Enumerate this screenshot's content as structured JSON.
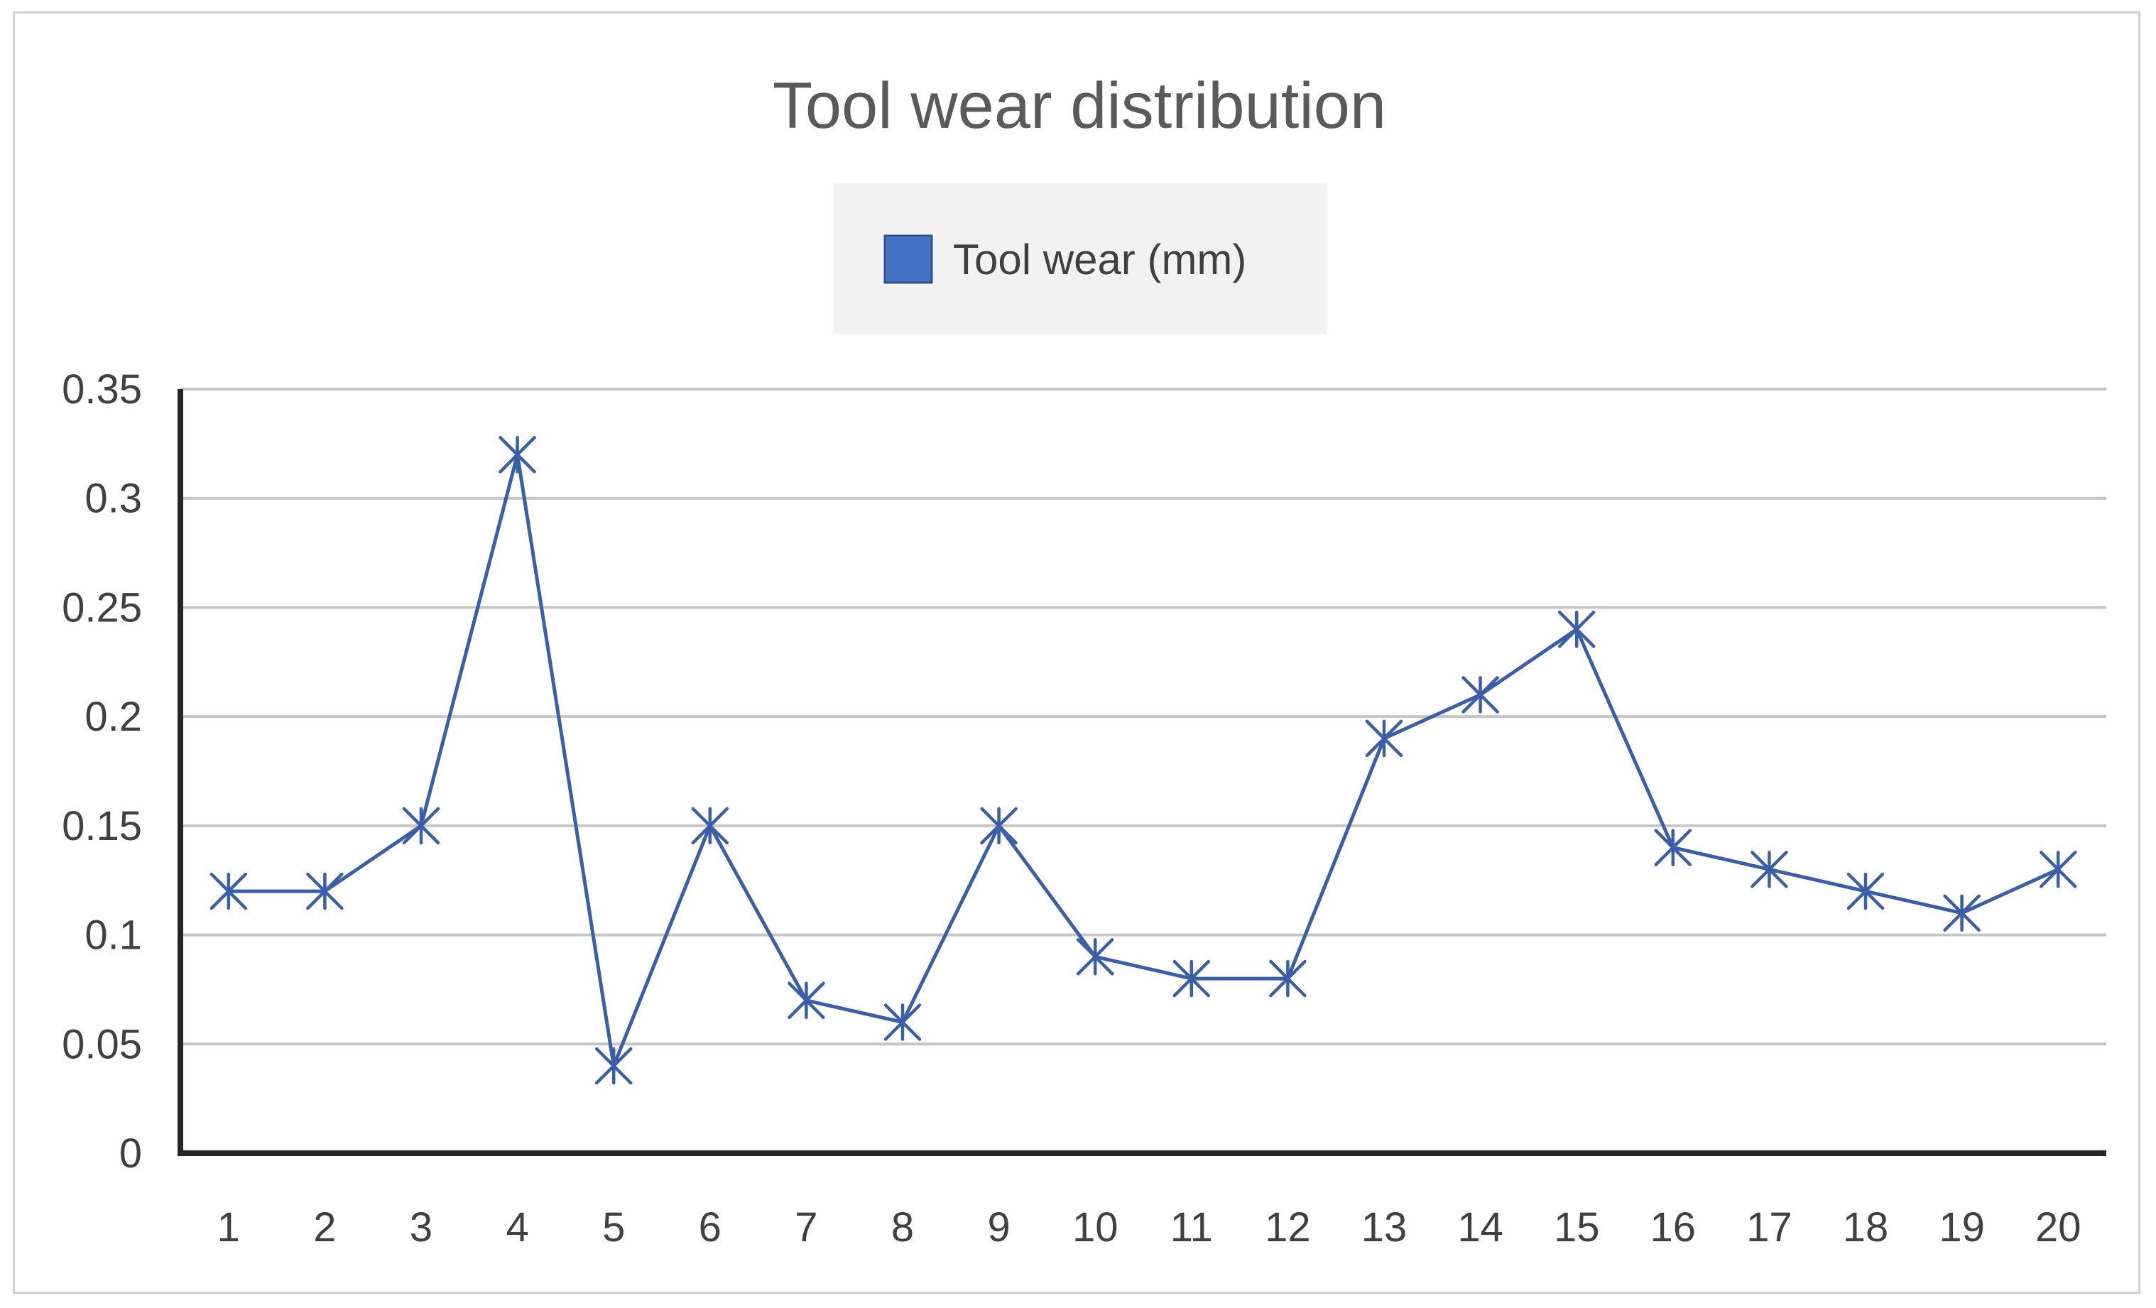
{
  "chart_data": {
    "type": "line",
    "title": "Tool wear distribution",
    "xlabel": "",
    "ylabel": "",
    "categories": [
      "1",
      "2",
      "3",
      "4",
      "5",
      "6",
      "7",
      "8",
      "9",
      "10",
      "11",
      "12",
      "13",
      "14",
      "15",
      "16",
      "17",
      "18",
      "19",
      "20"
    ],
    "series": [
      {
        "name": "Tool wear (mm)",
        "color": "#3a5ea8",
        "legend_color": "#4472c4",
        "marker": "asterisk",
        "values": [
          0.12,
          0.12,
          0.15,
          0.32,
          0.04,
          0.15,
          0.07,
          0.06,
          0.15,
          0.09,
          0.08,
          0.08,
          0.19,
          0.21,
          0.24,
          0.14,
          0.13,
          0.12,
          0.11,
          0.13
        ]
      }
    ],
    "yticks": [
      "0",
      "0.05",
      "0.1",
      "0.15",
      "0.2",
      "0.25",
      "0.3",
      "0.35"
    ],
    "ylim": [
      0,
      0.35
    ],
    "grid": true,
    "legend_position": "top-center"
  }
}
